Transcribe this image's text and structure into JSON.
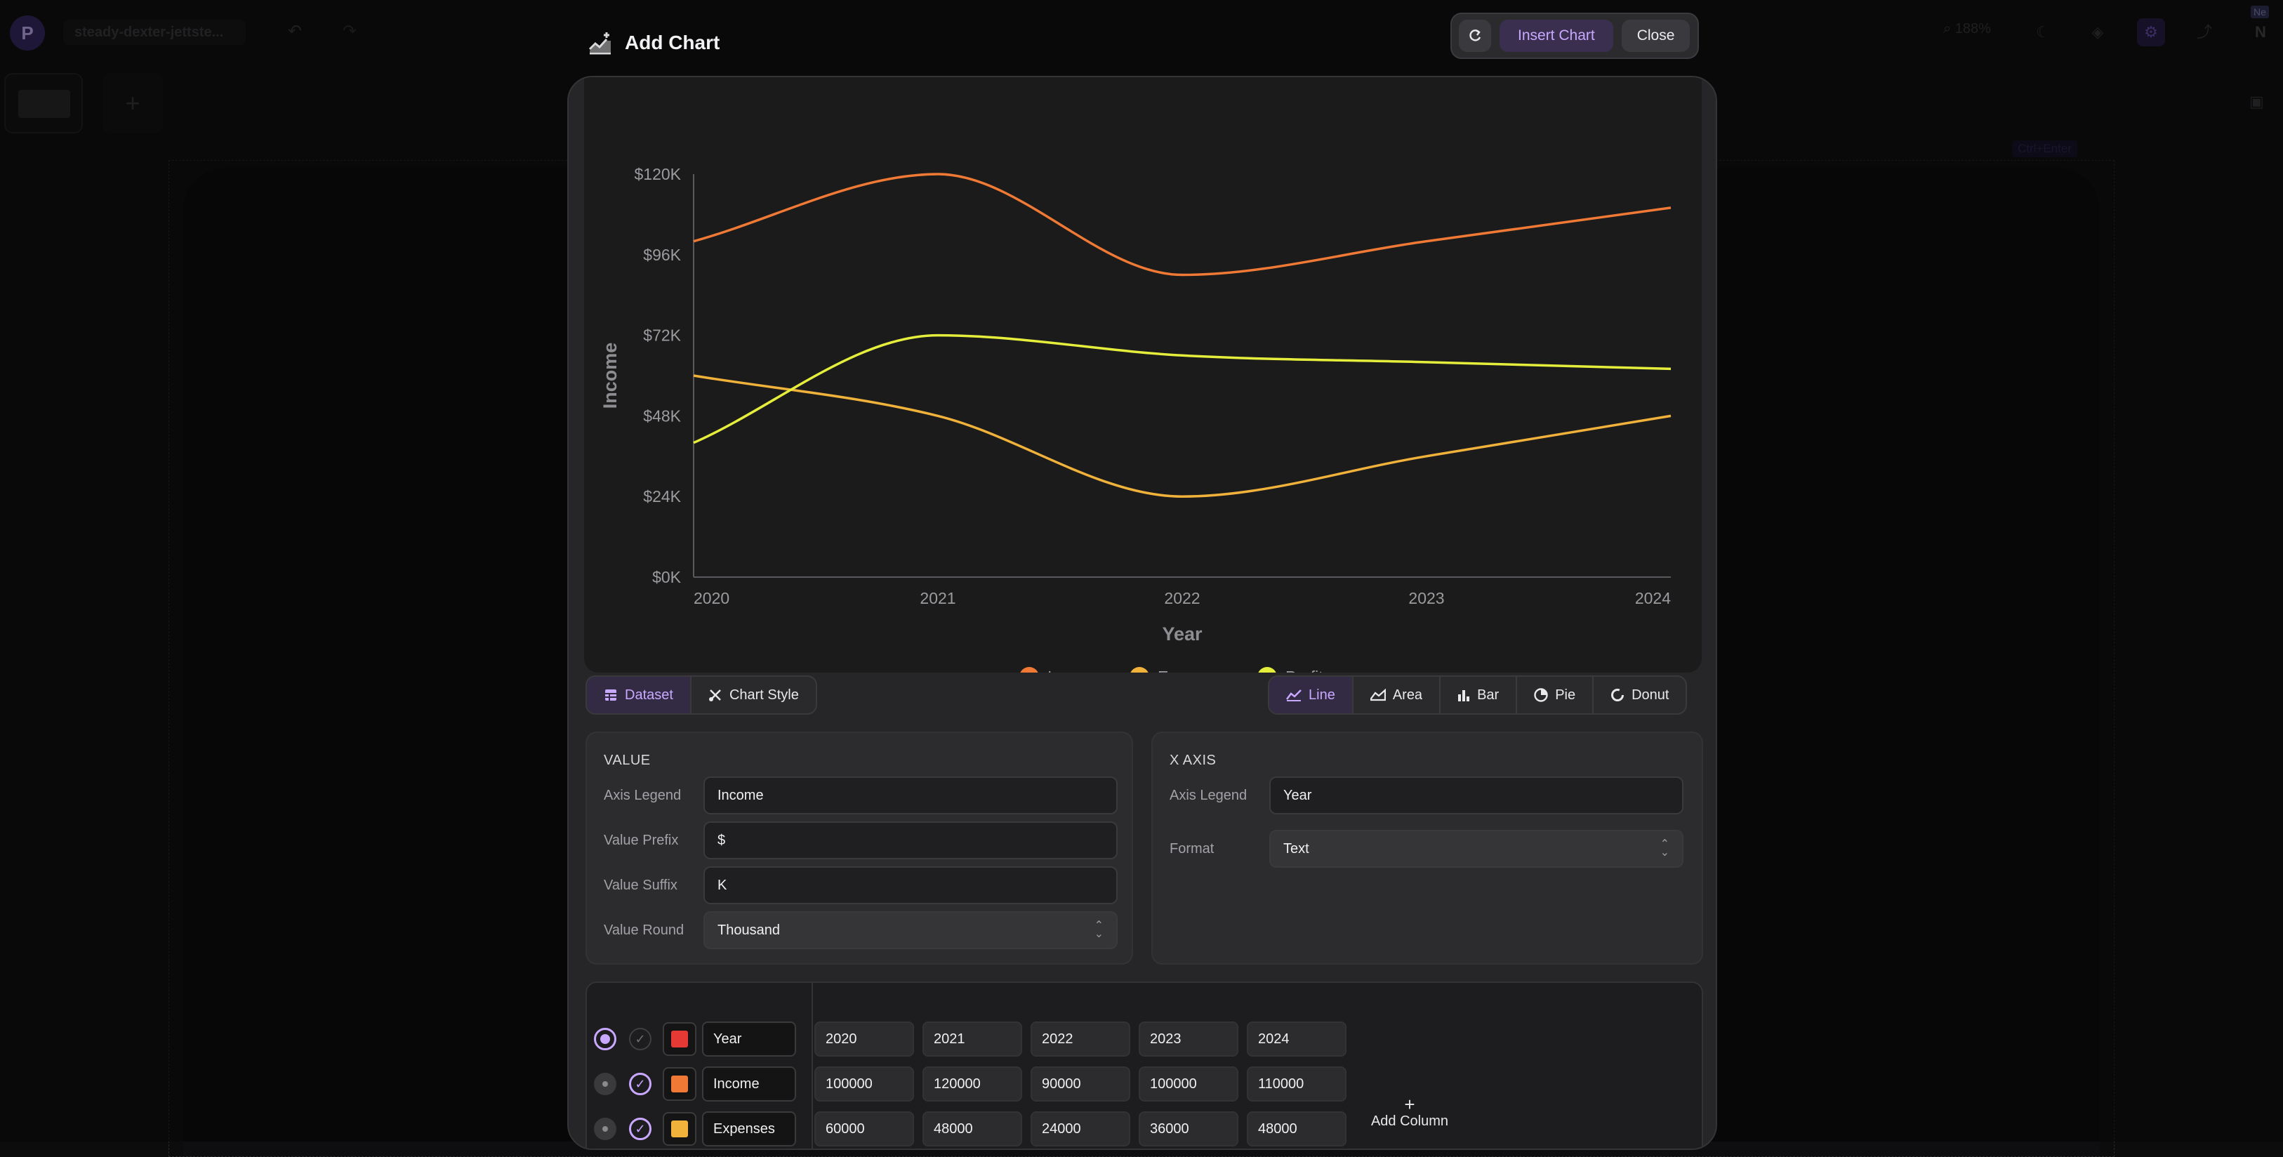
{
  "background": {
    "logo_letter": "P",
    "doc_title": "steady-dexter-jettste...",
    "zoom": "188%",
    "avatar_initial": "N",
    "avatar_badge": "Ne",
    "shortcut_label": "Ctrl+Enter"
  },
  "modal": {
    "title": "Add Chart",
    "insert_label": "Insert Chart",
    "close_label": "Close"
  },
  "tabs": [
    {
      "label": "Dataset",
      "icon": "table-icon",
      "active": true
    },
    {
      "label": "Chart Style",
      "icon": "brush-icon",
      "active": false
    }
  ],
  "chart_types": [
    {
      "label": "Line",
      "icon": "line-chart-icon",
      "active": true
    },
    {
      "label": "Area",
      "icon": "area-chart-icon",
      "active": false
    },
    {
      "label": "Bar",
      "icon": "bar-chart-icon",
      "active": false
    },
    {
      "label": "Pie",
      "icon": "pie-chart-icon",
      "active": false
    },
    {
      "label": "Donut",
      "icon": "donut-chart-icon",
      "active": false
    }
  ],
  "value_panel": {
    "title": "VALUE",
    "axis_legend_label": "Axis Legend",
    "axis_legend_value": "Income",
    "prefix_label": "Value Prefix",
    "prefix_value": "$",
    "suffix_label": "Value Suffix",
    "suffix_value": "K",
    "round_label": "Value Round",
    "round_value": "Thousand"
  },
  "xaxis_panel": {
    "title": "X AXIS",
    "axis_legend_label": "Axis Legend",
    "axis_legend_value": "Year",
    "format_label": "Format",
    "format_value": "Text"
  },
  "dataset": {
    "rows": [
      {
        "name": "Year",
        "color": "#e53935",
        "selected": true,
        "checked": false,
        "values": [
          "2020",
          "2021",
          "2022",
          "2023",
          "2024"
        ]
      },
      {
        "name": "Income",
        "color": "#f07a35",
        "selected": false,
        "checked": true,
        "values": [
          "100000",
          "120000",
          "90000",
          "100000",
          "110000"
        ]
      },
      {
        "name": "Expenses",
        "color": "#f0b23a",
        "selected": false,
        "checked": true,
        "values": [
          "60000",
          "48000",
          "24000",
          "36000",
          "48000"
        ]
      }
    ],
    "add_column_label": "Add Column"
  },
  "chart_data": {
    "type": "line",
    "categories": [
      "2020",
      "2021",
      "2022",
      "2023",
      "2024"
    ],
    "series": [
      {
        "name": "Income",
        "color": "#f07a35",
        "values": [
          100000,
          120000,
          90000,
          100000,
          110000
        ]
      },
      {
        "name": "Expenses",
        "color": "#f0b23a",
        "values": [
          60000,
          48000,
          24000,
          36000,
          48000
        ]
      },
      {
        "name": "Profit",
        "color": "#e6ee3c",
        "values": [
          40000,
          72000,
          66000,
          64000,
          62000
        ]
      }
    ],
    "yticks": [
      "$0K",
      "$24K",
      "$48K",
      "$72K",
      "$96K",
      "$120K"
    ],
    "ylim": [
      0,
      120000
    ],
    "xlabel": "Year",
    "ylabel": "Income",
    "legend_position": "bottom",
    "grid": false
  }
}
